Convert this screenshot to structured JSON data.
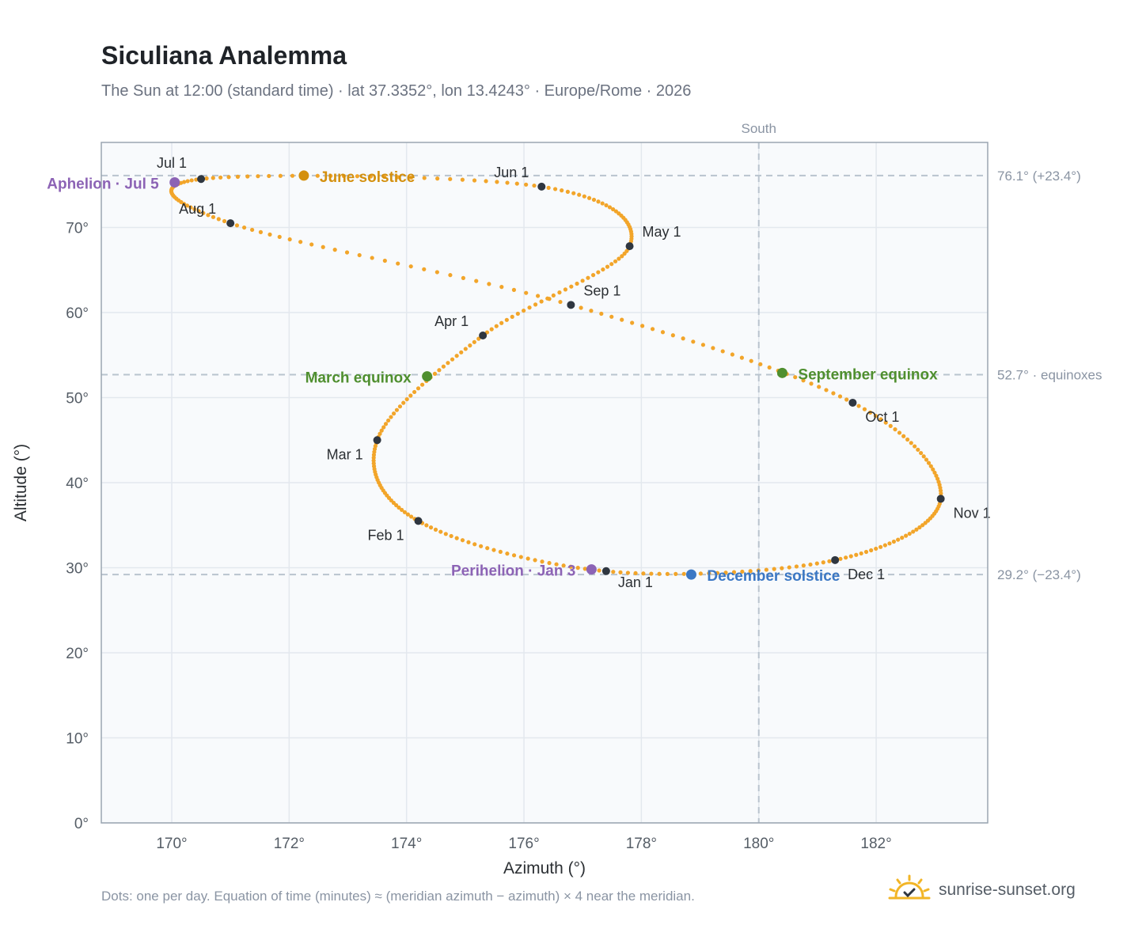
{
  "title": "Siculiana Analemma",
  "subtitle": "The Sun at 12:00 (standard time) · lat 37.3352°, lon 13.4243° · Europe/Rome · 2026",
  "footnote": "Dots: one per day. Equation of time (minutes) ≈ (meridian azimuth − azimuth) × 4 near the meridian.",
  "brand": {
    "name": "sunrise-sunset.org",
    "icon": "sun-check-icon"
  },
  "colors": {
    "path": "#f2a52a",
    "marker": "#2f3640",
    "june": "#d4900e",
    "equinox": "#4f8f2f",
    "december": "#3c78c4",
    "apsis": "#8c63b5",
    "grid": "#e3e8ee",
    "refline": "#b9c4ce",
    "plot_bg": "#f8fafc",
    "frame": "#9aa5b1"
  },
  "chart_data": {
    "type": "scatter",
    "title": "Siculiana Analemma",
    "xlabel": "Azimuth (°)",
    "ylabel": "Altitude (°)",
    "xlim": [
      168.8,
      183.9
    ],
    "ylim": [
      0,
      80
    ],
    "xticks": [
      170,
      172,
      174,
      176,
      178,
      180,
      182
    ],
    "xtick_labels": [
      "170°",
      "172°",
      "174°",
      "176°",
      "178°",
      "180°",
      "182°"
    ],
    "yticks": [
      0,
      10,
      20,
      30,
      40,
      50,
      60,
      70
    ],
    "ytick_labels": [
      "0°",
      "10°",
      "20°",
      "30°",
      "40°",
      "50°",
      "60°",
      "70°"
    ],
    "grid": true,
    "south_line": {
      "azimuth": 180,
      "label": "South"
    },
    "reference_lines": [
      {
        "altitude": 76.1,
        "label": "76.1° (+23.4°)"
      },
      {
        "altitude": 52.7,
        "label": "52.7° · equinoxes"
      },
      {
        "altitude": 29.2,
        "label": "29.2° (−23.4°)"
      }
    ],
    "month_markers": [
      {
        "label": "Jan 1",
        "azimuth": 177.4,
        "altitude": 29.6
      },
      {
        "label": "Feb 1",
        "azimuth": 174.2,
        "altitude": 35.5
      },
      {
        "label": "Mar 1",
        "azimuth": 173.5,
        "altitude": 45.0
      },
      {
        "label": "Apr 1",
        "azimuth": 175.3,
        "altitude": 57.3
      },
      {
        "label": "May 1",
        "azimuth": 177.8,
        "altitude": 67.8
      },
      {
        "label": "Jun 1",
        "azimuth": 176.3,
        "altitude": 74.8
      },
      {
        "label": "Jul 1",
        "azimuth": 170.5,
        "altitude": 75.7
      },
      {
        "label": "Aug 1",
        "azimuth": 171.0,
        "altitude": 70.5
      },
      {
        "label": "Sep 1",
        "azimuth": 176.8,
        "altitude": 60.9
      },
      {
        "label": "Oct 1",
        "azimuth": 181.6,
        "altitude": 49.4
      },
      {
        "label": "Nov 1",
        "azimuth": 183.1,
        "altitude": 38.1
      },
      {
        "label": "Dec 1",
        "azimuth": 181.3,
        "altitude": 30.9
      }
    ],
    "events": [
      {
        "label": "June solstice",
        "azimuth": 172.25,
        "altitude": 76.1,
        "color_key": "june"
      },
      {
        "label": "March equinox",
        "azimuth": 174.35,
        "altitude": 52.5,
        "color_key": "equinox"
      },
      {
        "label": "September equinox",
        "azimuth": 180.4,
        "altitude": 52.9,
        "color_key": "equinox"
      },
      {
        "label": "December solstice",
        "azimuth": 178.85,
        "altitude": 29.2,
        "color_key": "december"
      },
      {
        "label": "Aphelion · Jul 5",
        "azimuth": 170.05,
        "altitude": 75.3,
        "color_key": "apsis"
      },
      {
        "label": "Perihelion · Jan 3",
        "azimuth": 177.15,
        "altitude": 29.8,
        "color_key": "apsis"
      }
    ],
    "daily_path": [
      [
        177.4,
        29.59
      ],
      [
        174.2,
        35.5
      ],
      [
        173.5,
        45.0
      ],
      [
        175.3,
        57.3
      ],
      [
        177.8,
        67.8
      ],
      [
        176.3,
        74.8
      ],
      [
        170.5,
        75.7
      ],
      [
        171.0,
        70.5
      ],
      [
        176.8,
        60.9
      ],
      [
        181.6,
        49.4
      ],
      [
        183.1,
        38.1
      ],
      [
        181.3,
        30.9
      ]
    ]
  }
}
